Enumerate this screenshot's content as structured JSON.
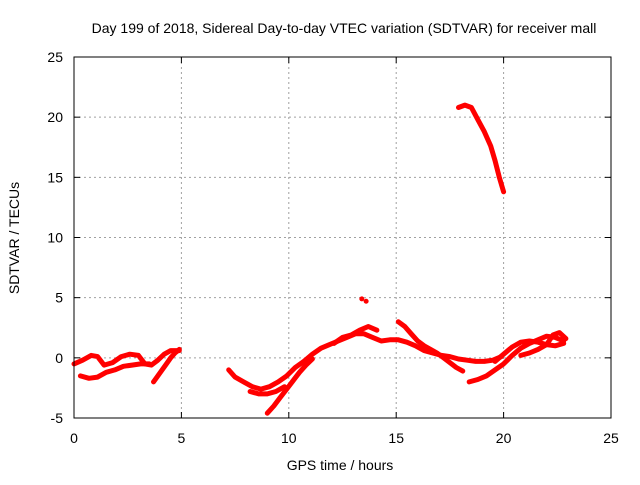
{
  "chart_data": {
    "type": "scatter",
    "title": "Day 199 of 2018, Sidereal Day-to-day VTEC variation (SDTVAR) for receiver mall",
    "xlabel": "GPS time / hours",
    "ylabel": "SDTVAR / TECUs",
    "xlim": [
      0,
      25
    ],
    "ylim": [
      -5,
      25
    ],
    "xticks": [
      "0",
      "5",
      "10",
      "15",
      "20",
      "25"
    ],
    "yticks": [
      "-5",
      "0",
      "5",
      "10",
      "15",
      "20",
      "25"
    ],
    "grid": true,
    "series": [
      {
        "name": "SDTVAR",
        "color": "#ff0000",
        "segments": [
          [
            [
              0.0,
              -0.5
            ],
            [
              0.4,
              -0.2
            ],
            [
              0.8,
              0.2
            ],
            [
              1.1,
              0.1
            ],
            [
              1.4,
              -0.6
            ],
            [
              1.8,
              -0.4
            ],
            [
              2.2,
              0.1
            ],
            [
              2.6,
              0.3
            ],
            [
              3.0,
              0.2
            ],
            [
              3.3,
              -0.5
            ],
            [
              3.6,
              -0.6
            ],
            [
              3.9,
              -0.2
            ],
            [
              4.2,
              0.3
            ],
            [
              4.5,
              0.6
            ],
            [
              4.9,
              0.6
            ]
          ],
          [
            [
              0.3,
              -1.5
            ],
            [
              0.7,
              -1.7
            ],
            [
              1.1,
              -1.6
            ],
            [
              1.5,
              -1.2
            ],
            [
              1.9,
              -1.0
            ],
            [
              2.3,
              -0.7
            ],
            [
              2.7,
              -0.6
            ],
            [
              3.1,
              -0.5
            ],
            [
              3.5,
              -0.5
            ]
          ],
          [
            [
              3.7,
              -2.0
            ],
            [
              3.9,
              -1.5
            ],
            [
              4.1,
              -1.0
            ],
            [
              4.3,
              -0.5
            ],
            [
              4.5,
              0.0
            ],
            [
              4.7,
              0.4
            ],
            [
              4.9,
              0.7
            ]
          ],
          [
            [
              7.2,
              -1.0
            ],
            [
              7.5,
              -1.6
            ],
            [
              7.9,
              -2.0
            ],
            [
              8.3,
              -2.4
            ],
            [
              8.7,
              -2.6
            ],
            [
              9.1,
              -2.4
            ],
            [
              9.5,
              -2.0
            ],
            [
              9.9,
              -1.5
            ],
            [
              10.3,
              -0.8
            ],
            [
              10.7,
              -0.3
            ],
            [
              11.1,
              0.3
            ],
            [
              11.5,
              0.8
            ],
            [
              11.9,
              1.1
            ],
            [
              12.3,
              1.4
            ],
            [
              12.7,
              1.7
            ],
            [
              13.1,
              2.0
            ],
            [
              13.5,
              2.0
            ],
            [
              13.9,
              1.7
            ],
            [
              14.3,
              1.4
            ],
            [
              14.7,
              1.5
            ],
            [
              15.1,
              1.5
            ],
            [
              15.5,
              1.3
            ],
            [
              15.9,
              1.0
            ],
            [
              16.3,
              0.6
            ],
            [
              16.7,
              0.4
            ],
            [
              17.1,
              0.2
            ],
            [
              17.5,
              0.1
            ],
            [
              17.9,
              -0.1
            ],
            [
              18.3,
              -0.2
            ],
            [
              18.7,
              -0.3
            ],
            [
              19.1,
              -0.3
            ],
            [
              19.5,
              -0.2
            ],
            [
              19.9,
              0.1
            ]
          ],
          [
            [
              9.0,
              -4.6
            ],
            [
              9.3,
              -4.0
            ],
            [
              9.6,
              -3.3
            ],
            [
              9.9,
              -2.6
            ],
            [
              10.2,
              -1.9
            ],
            [
              10.5,
              -1.2
            ],
            [
              10.8,
              -0.6
            ],
            [
              11.1,
              -0.1
            ]
          ],
          [
            [
              8.2,
              -2.8
            ],
            [
              8.6,
              -3.0
            ],
            [
              9.0,
              -3.0
            ],
            [
              9.4,
              -2.8
            ],
            [
              9.8,
              -2.4
            ]
          ],
          [
            [
              12.1,
              1.2
            ],
            [
              12.5,
              1.7
            ],
            [
              12.9,
              1.9
            ],
            [
              13.3,
              2.3
            ],
            [
              13.7,
              2.6
            ],
            [
              14.1,
              2.3
            ]
          ],
          [
            [
              15.1,
              3.0
            ],
            [
              15.4,
              2.6
            ],
            [
              15.7,
              2.0
            ],
            [
              16.0,
              1.4
            ],
            [
              16.3,
              1.0
            ],
            [
              16.6,
              0.7
            ],
            [
              16.9,
              0.4
            ],
            [
              17.2,
              0.0
            ],
            [
              17.5,
              -0.4
            ],
            [
              17.8,
              -0.8
            ],
            [
              18.1,
              -1.1
            ]
          ],
          [
            [
              18.4,
              -2.0
            ],
            [
              18.8,
              -1.8
            ],
            [
              19.2,
              -1.5
            ],
            [
              19.6,
              -1.0
            ],
            [
              20.0,
              -0.5
            ],
            [
              20.4,
              0.2
            ],
            [
              20.8,
              0.8
            ],
            [
              21.2,
              1.2
            ],
            [
              21.6,
              1.5
            ],
            [
              22.0,
              1.8
            ],
            [
              22.4,
              1.7
            ],
            [
              22.8,
              1.4
            ]
          ],
          [
            [
              19.6,
              -0.3
            ],
            [
              20.0,
              0.3
            ],
            [
              20.4,
              0.9
            ],
            [
              20.8,
              1.3
            ],
            [
              21.2,
              1.4
            ],
            [
              21.6,
              1.3
            ],
            [
              22.0,
              1.1
            ],
            [
              22.4,
              1.0
            ],
            [
              22.8,
              1.2
            ]
          ],
          [
            [
              20.8,
              0.2
            ],
            [
              21.2,
              0.4
            ],
            [
              21.6,
              0.7
            ],
            [
              22.0,
              1.1
            ],
            [
              22.3,
              1.9
            ],
            [
              22.6,
              2.1
            ],
            [
              22.9,
              1.6
            ]
          ],
          [
            [
              17.9,
              20.8
            ],
            [
              18.2,
              21.0
            ],
            [
              18.5,
              20.8
            ],
            [
              18.8,
              19.8
            ],
            [
              19.1,
              18.8
            ],
            [
              19.4,
              17.6
            ],
            [
              19.6,
              16.4
            ],
            [
              19.8,
              15.0
            ],
            [
              20.0,
              13.8
            ]
          ]
        ],
        "points": [
          [
            13.4,
            4.9
          ],
          [
            13.6,
            4.7
          ]
        ]
      }
    ]
  }
}
